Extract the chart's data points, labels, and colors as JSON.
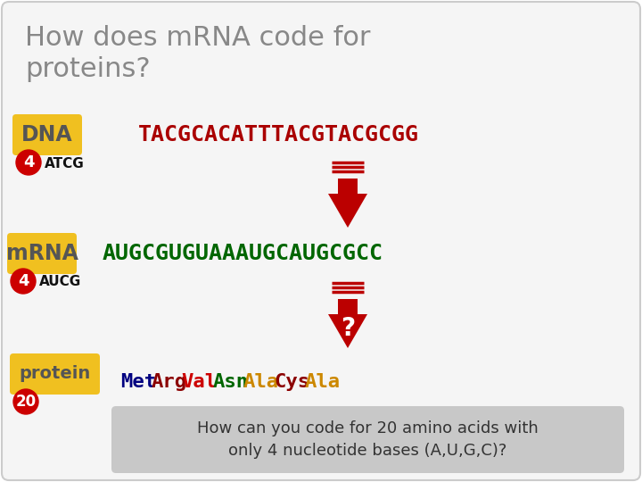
{
  "title": "How does mRNA code for\nproteins?",
  "title_color": "#888888",
  "bg_color": "#ffffff",
  "card_bg": "#f5f5f5",
  "dna_label": "DNA",
  "dna_bases": "ATCG",
  "dna_seq": "TACGCACATTTACGTACGCGG",
  "dna_seq_color": "#aa0000",
  "mrna_label": "mRNA",
  "mrna_bases": "AUCG",
  "mrna_seq": "AUGCGUGUAAAUGCAUGCGCC",
  "mrna_seq_color": "#006600",
  "protein_label": "protein",
  "protein_words": [
    "Met",
    "Arg",
    "Val",
    "Asn",
    "Ala",
    "Cys",
    "Ala"
  ],
  "protein_colors": [
    "#000080",
    "#8b0000",
    "#cc0000",
    "#006600",
    "#cc8800",
    "#8b0000",
    "#cc8800"
  ],
  "label_bg": "#f0c020",
  "label_text_color": "#555555",
  "circle_bg": "#cc0000",
  "circle_text_color": "#ffffff",
  "dna_num": "4",
  "mrna_num": "4",
  "protein_num": "20",
  "arrow_color": "#bb0000",
  "bottom_box_bg": "#c8c8c8",
  "bottom_text": "How can you code for 20 amino acids with\nonly 4 nucleotide bases (A,U,G,C)?",
  "bottom_text_color": "#333333"
}
